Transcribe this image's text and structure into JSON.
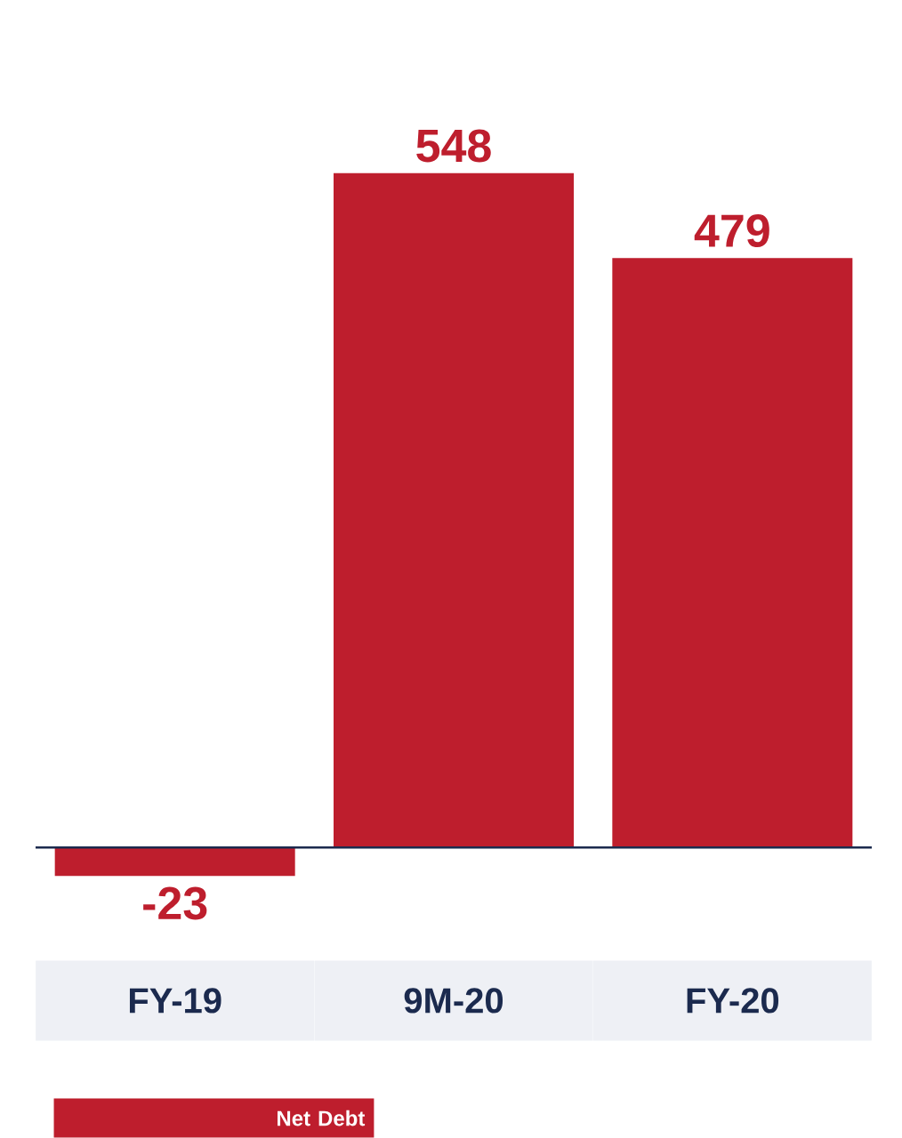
{
  "chart_data": {
    "type": "bar",
    "categories": [
      "FY-19",
      "9M-20",
      "FY-20"
    ],
    "series": [
      {
        "name": "Net Debt",
        "color": "#be1e2d",
        "values": [
          -23,
          548,
          479
        ]
      }
    ],
    "data_labels": true,
    "legend": "bottom left"
  }
}
